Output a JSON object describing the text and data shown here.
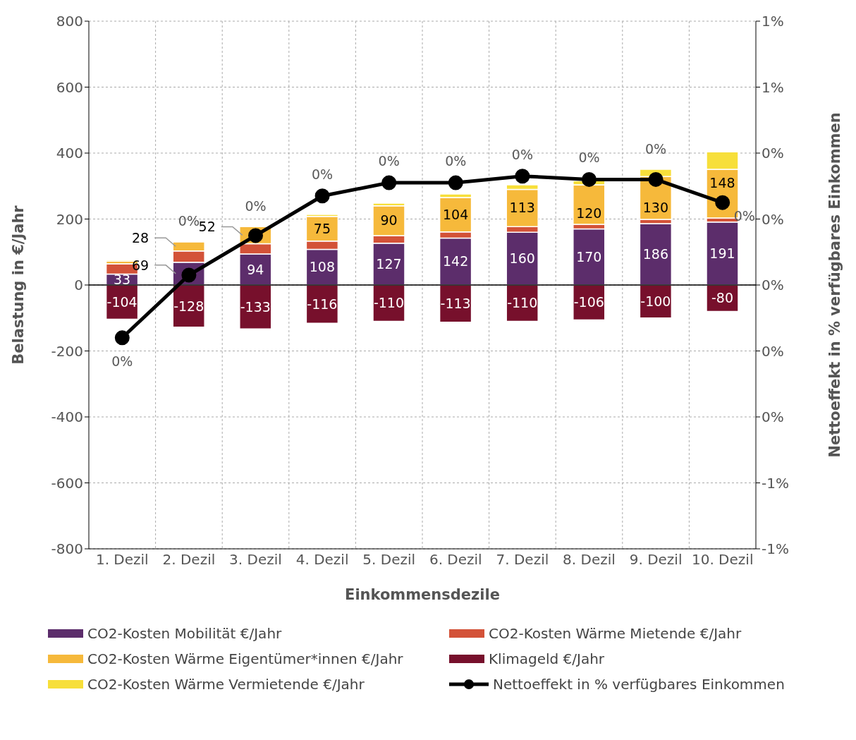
{
  "chart_data": {
    "type": "bar",
    "stacked": true,
    "xlabel": "Einkommensdezile",
    "ylabel": "Belastung in €/Jahr",
    "y2label": "Nettoeffekt in % verfügbares Einkommen",
    "categories": [
      "1. Dezil",
      "2. Dezil",
      "3. Dezil",
      "4. Dezil",
      "5. Dezil",
      "6. Dezil",
      "7. Dezil",
      "8. Dezil",
      "9. Dezil",
      "10. Dezil"
    ],
    "ylim": [
      -800,
      800
    ],
    "yticks": [
      -800,
      -600,
      -400,
      -200,
      0,
      200,
      400,
      600,
      800
    ],
    "y2lim": [
      -0.8,
      0.8
    ],
    "y2ticks": [
      {
        "value": -0.8,
        "label": "-1%"
      },
      {
        "value": -0.6,
        "label": "-1%"
      },
      {
        "value": -0.4,
        "label": "0%"
      },
      {
        "value": -0.2,
        "label": "0%"
      },
      {
        "value": 0,
        "label": "0%"
      },
      {
        "value": 0.2,
        "label": "0%"
      },
      {
        "value": 0.4,
        "label": "0%"
      },
      {
        "value": 0.6,
        "label": "1%"
      },
      {
        "value": 0.8,
        "label": "1%"
      }
    ],
    "grid": true,
    "legend": "bottom",
    "series": [
      {
        "name": "CO2-Kosten Mobilität €/Jahr",
        "color": "#5c2d6b",
        "values": [
          33,
          69,
          94,
          108,
          127,
          142,
          160,
          170,
          186,
          191
        ],
        "value_labels": [
          "33",
          "69",
          "94",
          "108",
          "127",
          "142",
          "160",
          "170",
          "186",
          "191"
        ]
      },
      {
        "name": "CO2-Kosten Wärme Mietende €/Jahr",
        "color": "#d35238",
        "values": [
          31,
          34,
          31,
          25,
          23,
          19,
          17,
          14,
          13,
          12
        ]
      },
      {
        "name": "CO2-Kosten Wärme Eigentümer*innen €/Jahr",
        "color": "#f6b93b",
        "values": [
          8,
          28,
          52,
          75,
          90,
          104,
          113,
          120,
          130,
          148
        ],
        "value_labels": [
          null,
          "28",
          "52",
          "75",
          "90",
          "104",
          "113",
          "120",
          "130",
          "148"
        ]
      },
      {
        "name": "Klimageld €/Jahr",
        "color": "#77102c",
        "values": [
          -104,
          -128,
          -133,
          -116,
          -110,
          -113,
          -110,
          -106,
          -100,
          -80
        ],
        "value_labels": [
          "-104",
          "-128",
          "-133",
          "-116",
          "-110",
          "-113",
          "-110",
          "-106",
          "-100",
          "-80"
        ]
      },
      {
        "name": "CO2-Kosten Wärme Vermietende €/Jahr",
        "color": "#f7df3a",
        "values": [
          4,
          1,
          1,
          6,
          8,
          11,
          14,
          12,
          22,
          53
        ]
      },
      {
        "name": "Nettoeffekt in % verfügbares Einkommen",
        "type": "line",
        "axis": "y2",
        "marker": "circle",
        "color": "#000000",
        "values": [
          -0.16,
          0.03,
          0.15,
          0.27,
          0.31,
          0.31,
          0.33,
          0.32,
          0.32,
          0.25
        ],
        "value_labels": [
          "0%",
          "0%",
          "0%",
          "0%",
          "0%",
          "0%",
          "0%",
          "0%",
          "0%",
          "0%"
        ]
      }
    ]
  }
}
